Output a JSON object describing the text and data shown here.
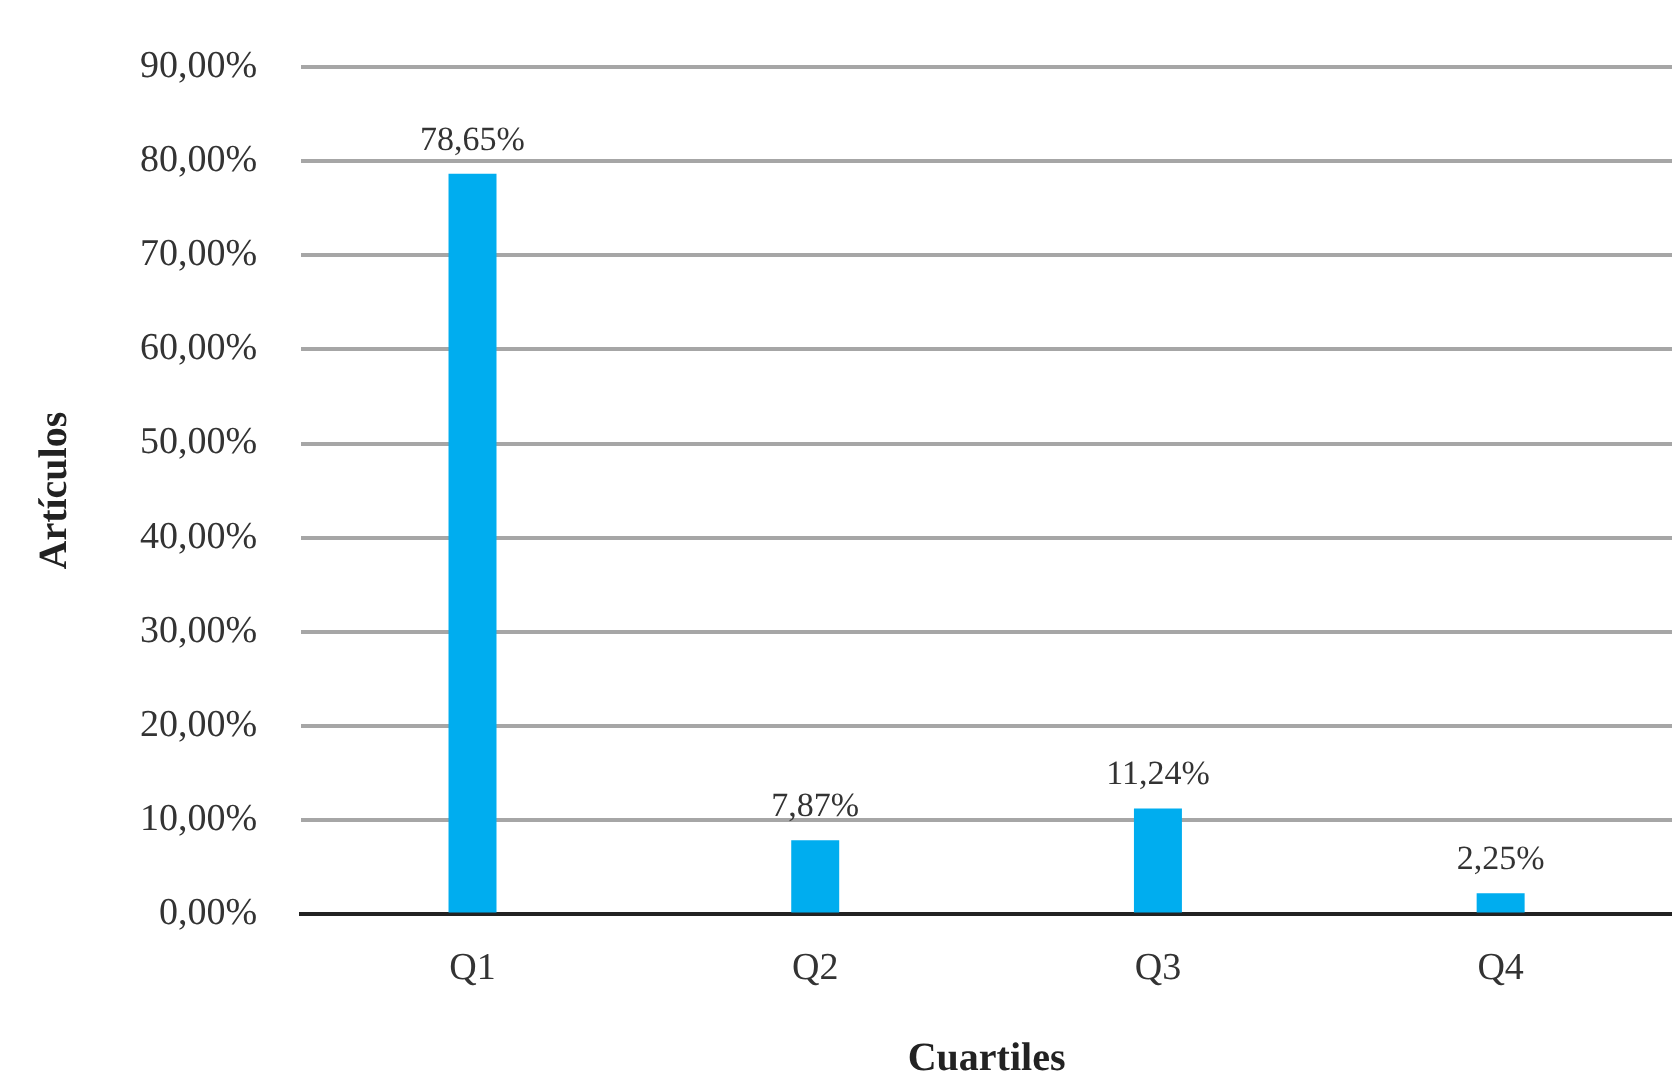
{
  "chart_data": {
    "type": "bar",
    "xlabel": "Cuartiles",
    "ylabel": "Artículos",
    "categories": [
      "Q1",
      "Q2",
      "Q3",
      "Q4"
    ],
    "values": [
      78.65,
      7.87,
      11.24,
      2.25
    ],
    "color": "#00adef",
    "value_labels": [
      "78,65%",
      "7,87%",
      "11,24%",
      "2,25%"
    ],
    "ylim": [
      0,
      90
    ],
    "yticks": [
      {
        "value": 0,
        "label": "0,00%"
      },
      {
        "value": 10,
        "label": "10,00%"
      },
      {
        "value": 20,
        "label": "20,00%"
      },
      {
        "value": 30,
        "label": "30,00%"
      },
      {
        "value": 40,
        "label": "40,00%"
      },
      {
        "value": 50,
        "label": "50,00%"
      },
      {
        "value": 60,
        "label": "60,00%"
      },
      {
        "value": 70,
        "label": "70,00%"
      },
      {
        "value": 80,
        "label": "80,00%"
      },
      {
        "value": 90,
        "label": "90,00%"
      }
    ],
    "grid": "y"
  }
}
